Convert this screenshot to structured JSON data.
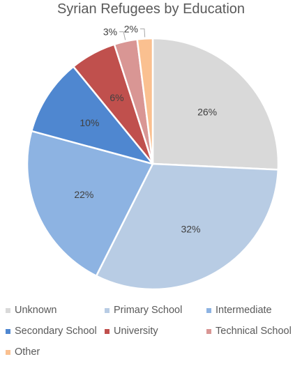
{
  "chart_data": {
    "type": "pie",
    "title": "Syrian Refugees by Education",
    "legend_position": "bottom",
    "slices": [
      {
        "label": "Unknown",
        "value": 26,
        "display": "26%",
        "color": "#d9d9d9"
      },
      {
        "label": "Primary School",
        "value": 32,
        "display": "32%",
        "color": "#b8cce4"
      },
      {
        "label": "Intermediate",
        "value": 22,
        "display": "22%",
        "color": "#8db3e2"
      },
      {
        "label": "Secondary School",
        "value": 10,
        "display": "10%",
        "color": "#4f87d0"
      },
      {
        "label": "University",
        "value": 6,
        "display": "6%",
        "color": "#c0504d"
      },
      {
        "label": "Technical School",
        "value": 3,
        "display": "3%",
        "color": "#d99694"
      },
      {
        "label": "Other",
        "value": 2,
        "display": "2%",
        "color": "#fac090"
      }
    ]
  }
}
